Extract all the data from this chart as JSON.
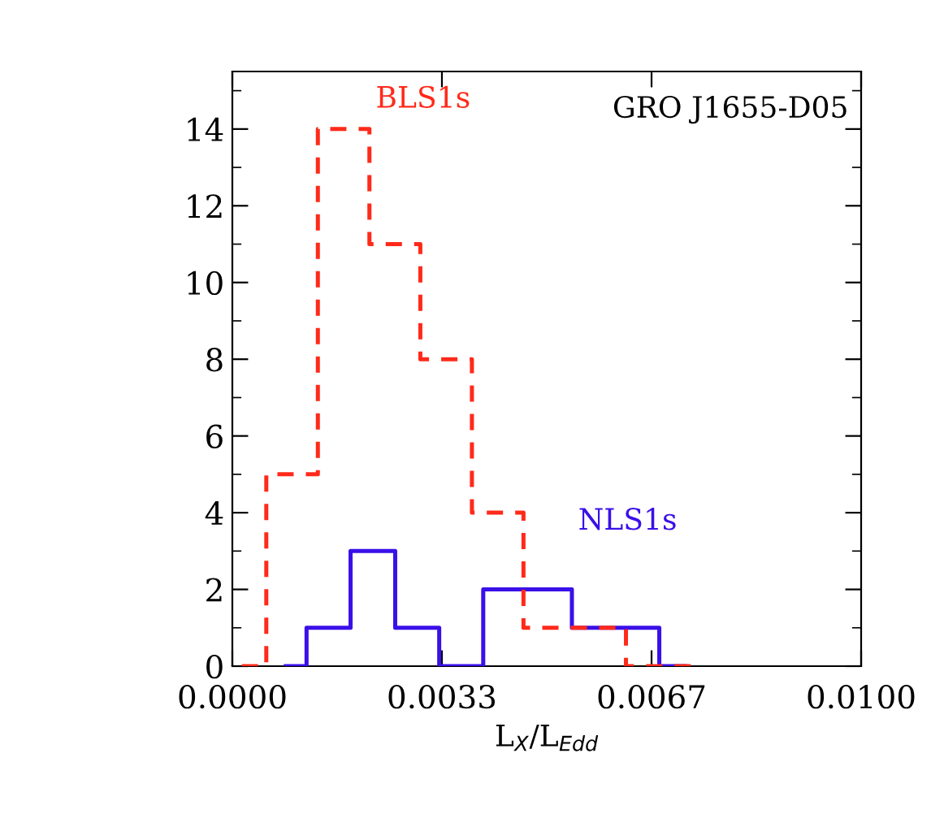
{
  "chart_data": {
    "type": "step",
    "xlabel": "L$_{X}$/L$_{Edd}$",
    "annotations": [
      "GRO J1655-D05"
    ],
    "xlim": [
      0,
      0.01
    ],
    "ylim": [
      0,
      15.5
    ],
    "xticks": [
      {
        "value": 0,
        "label": "0.0000"
      },
      {
        "value": 0.003333,
        "label": "0.0033"
      },
      {
        "value": 0.006667,
        "label": "0.0067"
      },
      {
        "value": 0.01,
        "label": "0.0100"
      }
    ],
    "yticks": [
      0,
      2,
      4,
      6,
      8,
      10,
      12,
      14
    ],
    "grid": false,
    "legend": false,
    "series": [
      {
        "name": "BLS1s",
        "color": "#ff2a1a",
        "line_style": "dashed",
        "x": [
          0.00015,
          0.00054,
          0.00136,
          0.00218,
          0.00299,
          0.00381,
          0.00463,
          0.00545,
          0.00626,
          0.00733
        ],
        "values": [
          0,
          5,
          14,
          11,
          8,
          4,
          1,
          1,
          0,
          0
        ]
      },
      {
        "name": "NLS1s",
        "color": "#3a10e8",
        "line_style": "solid",
        "x": [
          0.00085,
          0.00118,
          0.00188,
          0.00259,
          0.00329,
          0.00399,
          0.0047,
          0.0054,
          0.0061,
          0.00679,
          0.0072
        ],
        "values": [
          0,
          1,
          3,
          1,
          0,
          2,
          2,
          1,
          1,
          0,
          0
        ]
      }
    ]
  }
}
